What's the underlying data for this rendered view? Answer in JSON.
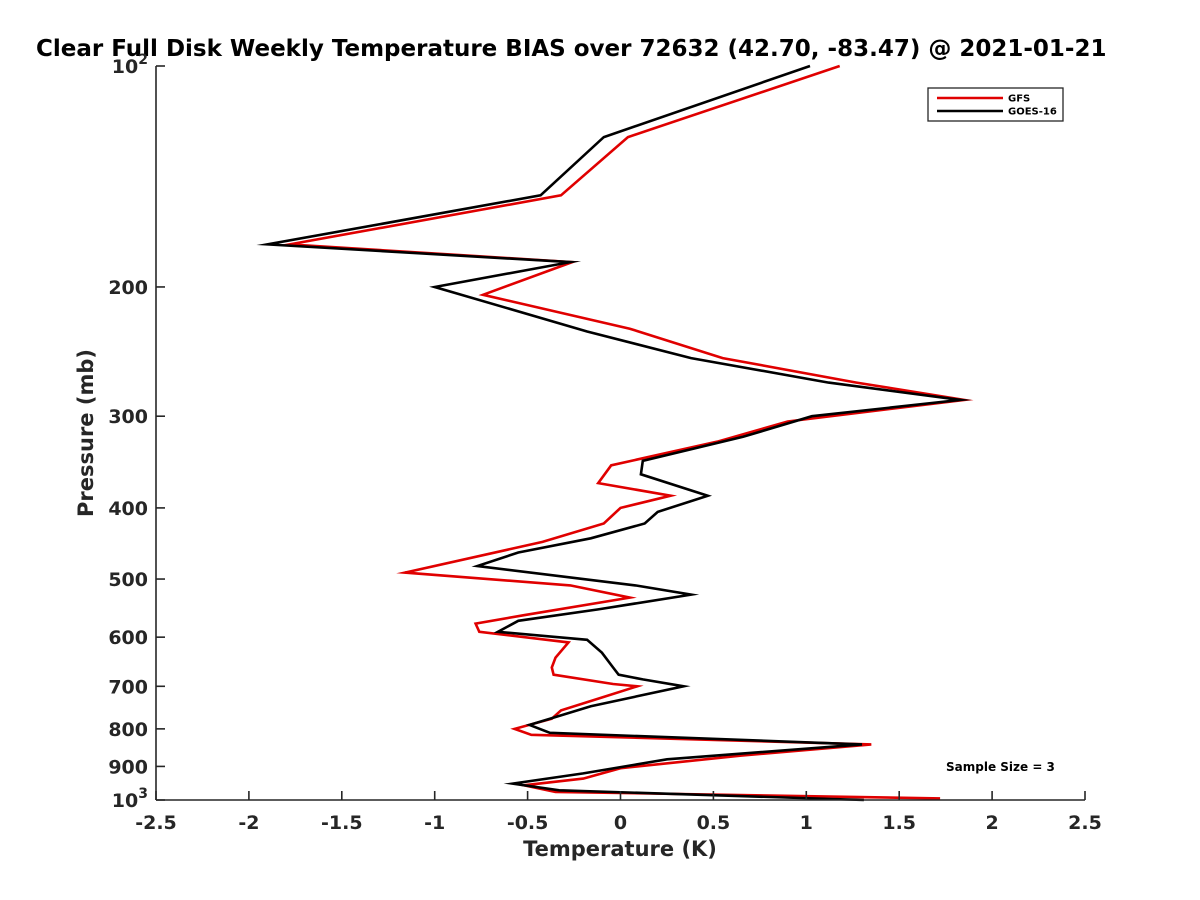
{
  "chart_data": {
    "type": "line",
    "title": "Clear Full Disk Weekly Temperature BIAS over 72632 (42.70, -83.47) @ 2021-01-21",
    "xlabel": "Temperature (K)",
    "ylabel": "Pressure (mb)",
    "xlim": [
      -2.5,
      2.5
    ],
    "ylim": [
      100,
      1000
    ],
    "yscale": "log",
    "y_reversed": true,
    "grid": false,
    "legend_position": "top-right",
    "x_ticks": [
      -2.5,
      -2,
      -1.5,
      -1,
      -0.5,
      0,
      0.5,
      1,
      1.5,
      2,
      2.5
    ],
    "x_tick_labels": [
      "-2.5",
      "-2",
      "-1.5",
      "-1",
      "-0.5",
      "0",
      "0.5",
      "1",
      "1.5",
      "2",
      "2.5"
    ],
    "y_ticks": [
      {
        "value": 100,
        "base": "10",
        "exp": "2"
      },
      {
        "value": 200,
        "label": "200"
      },
      {
        "value": 300,
        "label": "300"
      },
      {
        "value": 400,
        "label": "400"
      },
      {
        "value": 500,
        "label": "500"
      },
      {
        "value": 600,
        "label": "600"
      },
      {
        "value": 700,
        "label": "700"
      },
      {
        "value": 800,
        "label": "800"
      },
      {
        "value": 900,
        "label": "900"
      },
      {
        "value": 1000,
        "base": "10",
        "exp": "3"
      }
    ],
    "series": [
      {
        "name": "GFS",
        "color": "#e00000",
        "points": [
          [
            1.18,
            100
          ],
          [
            0.04,
            125
          ],
          [
            -0.32,
            150
          ],
          [
            -1.78,
            175
          ],
          [
            -0.26,
            185
          ],
          [
            -0.74,
            205
          ],
          [
            0.05,
            228
          ],
          [
            0.55,
            250
          ],
          [
            1.27,
            270
          ],
          [
            1.85,
            285
          ],
          [
            0.9,
            305
          ],
          [
            0.52,
            325
          ],
          [
            -0.05,
            350
          ],
          [
            -0.12,
            370
          ],
          [
            0.27,
            385
          ],
          [
            0.0,
            400
          ],
          [
            -0.09,
            420
          ],
          [
            -0.42,
            445
          ],
          [
            -1.16,
            490
          ],
          [
            -0.27,
            510
          ],
          [
            0.05,
            530
          ],
          [
            -0.52,
            560
          ],
          [
            -0.78,
            575
          ],
          [
            -0.76,
            590
          ],
          [
            -0.28,
            610
          ],
          [
            -0.35,
            640
          ],
          [
            -0.37,
            660
          ],
          [
            -0.36,
            675
          ],
          [
            -0.04,
            695
          ],
          [
            0.09,
            700
          ],
          [
            -0.1,
            725
          ],
          [
            -0.32,
            755
          ],
          [
            -0.37,
            775
          ],
          [
            -0.57,
            800
          ],
          [
            -0.48,
            815
          ],
          [
            1.35,
            840
          ],
          [
            0.65,
            870
          ],
          [
            0.0,
            905
          ],
          [
            -0.2,
            935
          ],
          [
            -0.52,
            955
          ],
          [
            -0.35,
            975
          ],
          [
            1.72,
            995
          ]
        ]
      },
      {
        "name": "GOES-16",
        "color": "#000000",
        "points": [
          [
            1.02,
            100
          ],
          [
            -0.09,
            125
          ],
          [
            -0.43,
            150
          ],
          [
            -1.9,
            175
          ],
          [
            -0.27,
            185
          ],
          [
            -1.0,
            200
          ],
          [
            -0.18,
            230
          ],
          [
            0.38,
            250
          ],
          [
            1.12,
            270
          ],
          [
            1.83,
            285
          ],
          [
            1.03,
            300
          ],
          [
            0.66,
            320
          ],
          [
            0.12,
            345
          ],
          [
            0.11,
            360
          ],
          [
            0.47,
            385
          ],
          [
            0.2,
            405
          ],
          [
            0.13,
            420
          ],
          [
            -0.16,
            440
          ],
          [
            -0.55,
            460
          ],
          [
            -0.77,
            480
          ],
          [
            0.08,
            510
          ],
          [
            0.38,
            525
          ],
          [
            -0.12,
            550
          ],
          [
            -0.55,
            570
          ],
          [
            -0.66,
            590
          ],
          [
            -0.18,
            605
          ],
          [
            -0.1,
            630
          ],
          [
            -0.04,
            660
          ],
          [
            -0.01,
            675
          ],
          [
            0.12,
            685
          ],
          [
            0.34,
            700
          ],
          [
            -0.16,
            745
          ],
          [
            -0.38,
            775
          ],
          [
            -0.49,
            790
          ],
          [
            -0.38,
            810
          ],
          [
            1.3,
            840
          ],
          [
            0.25,
            880
          ],
          [
            -0.2,
            920
          ],
          [
            -0.58,
            950
          ],
          [
            -0.33,
            970
          ],
          [
            1.31,
            1000
          ]
        ]
      }
    ],
    "annotation": "Sample Size = 3"
  }
}
